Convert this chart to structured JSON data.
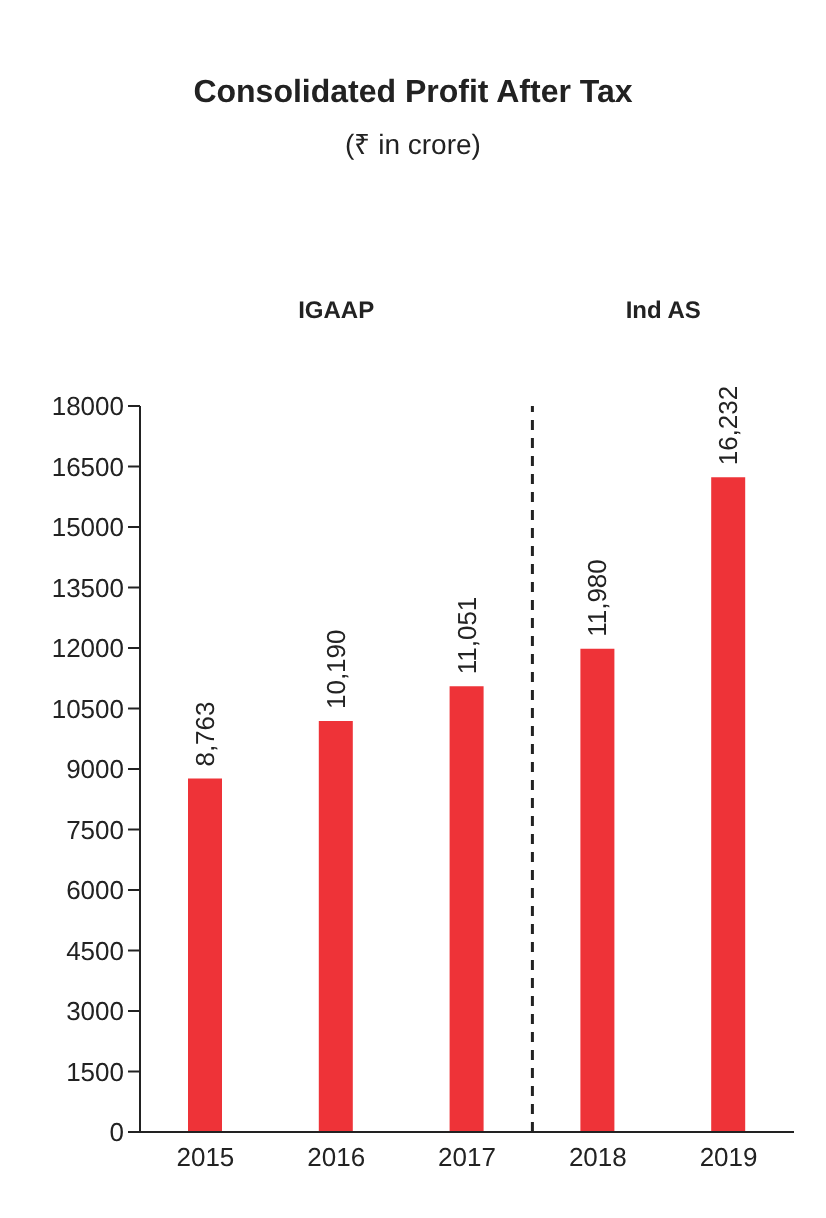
{
  "chart_data": {
    "type": "bar",
    "title": "Consolidated Profit After Tax",
    "subtitle": "(₹ in crore)",
    "x": [
      2015,
      2016,
      2017,
      2018,
      2019
    ],
    "xticks": [
      2015,
      2016,
      2017,
      2018,
      2019
    ],
    "xlim": [
      2014.5,
      2019.5
    ],
    "values": [
      8763,
      10190,
      11051,
      11980,
      16232
    ],
    "value_labels": [
      "8,763",
      "10,190",
      "11,051",
      "11,980",
      "16,232"
    ],
    "color": "#ee3338",
    "ylim": [
      0,
      18000
    ],
    "yticks": [
      0,
      1500,
      3000,
      4500,
      6000,
      7500,
      9000,
      10500,
      12000,
      13500,
      15000,
      16500,
      18000
    ],
    "ref_lines": [
      {
        "axis": "x",
        "value": 2017.5,
        "line_style": "dashed",
        "color": "#222222"
      }
    ],
    "annotations": [
      "IGAAP",
      "Ind AS"
    ],
    "grid": false,
    "legend": false
  }
}
